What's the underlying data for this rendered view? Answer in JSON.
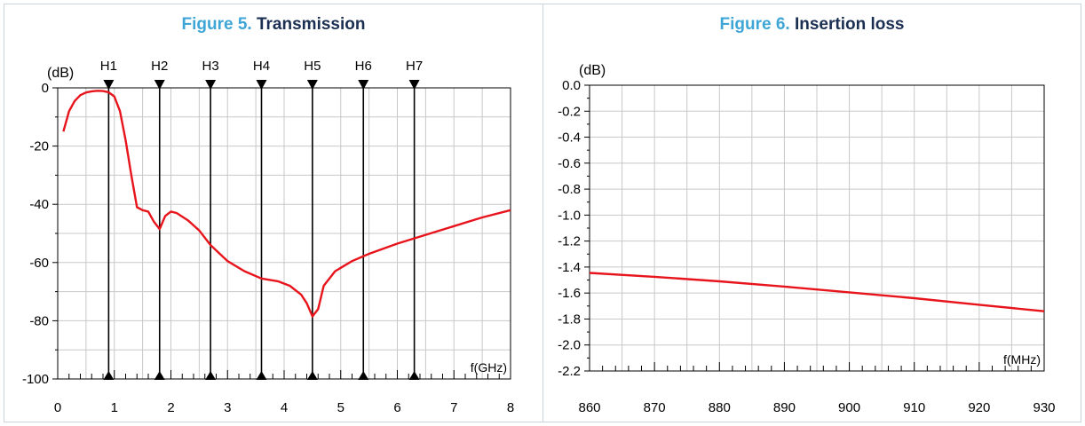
{
  "figure5": {
    "label": "Figure 5.",
    "title": "Transmission"
  },
  "figure6": {
    "label": "Figure 6.",
    "title": "Insertion loss"
  },
  "colors": {
    "curve": "#e8141c",
    "title_accent": "#3ea6d6",
    "title_main": "#1b2f52",
    "grid": "#c8c8c8",
    "panel_border": "#c9d3dc"
  },
  "chart_data": [
    {
      "type": "line",
      "title": "Transmission",
      "ylabel": "(dB)",
      "xlabel": "f(GHz)",
      "xlim": [
        0,
        8
      ],
      "ylim": [
        -100,
        0
      ],
      "x_ticks": [
        0,
        1,
        2,
        3,
        4,
        5,
        6,
        7,
        8
      ],
      "y_ticks": [
        0,
        -20,
        -40,
        -60,
        -80,
        -100
      ],
      "grid": true,
      "markers": [
        {
          "name": "H1",
          "x": 0.9
        },
        {
          "name": "H2",
          "x": 1.8
        },
        {
          "name": "H3",
          "x": 2.7
        },
        {
          "name": "H4",
          "x": 3.6
        },
        {
          "name": "H5",
          "x": 4.5
        },
        {
          "name": "H6",
          "x": 5.4
        },
        {
          "name": "H7",
          "x": 6.3
        }
      ],
      "series": [
        {
          "x": [
            0.1,
            0.2,
            0.3,
            0.4,
            0.5,
            0.6,
            0.7,
            0.8,
            0.9,
            1.0,
            1.1,
            1.2,
            1.3,
            1.4,
            1.5,
            1.6,
            1.7,
            1.8,
            1.9,
            2.0,
            2.1,
            2.3,
            2.5,
            2.7,
            3.0,
            3.3,
            3.6,
            3.9,
            4.1,
            4.3,
            4.4,
            4.5,
            4.6,
            4.7,
            4.9,
            5.2,
            5.5,
            6.0,
            6.5,
            7.0,
            7.5,
            8.0
          ],
          "y": [
            -15,
            -8,
            -4.5,
            -2.5,
            -1.6,
            -1.2,
            -1.0,
            -1.1,
            -1.5,
            -3,
            -8,
            -18,
            -30,
            -41,
            -42,
            -42.5,
            -46,
            -48.5,
            -44,
            -42.5,
            -43,
            -45.5,
            -49,
            -54,
            -59.5,
            -63,
            -65.5,
            -66.5,
            -68,
            -71,
            -74,
            -78.5,
            -76,
            -68,
            -63,
            -59.5,
            -57,
            -53.5,
            -50.5,
            -47.5,
            -44.5,
            -42
          ]
        }
      ]
    },
    {
      "type": "line",
      "title": "Insertion loss",
      "ylabel": "(dB)",
      "xlabel": "f(MHz)",
      "xlim": [
        860,
        930
      ],
      "ylim": [
        -2.2,
        0.0
      ],
      "x_ticks": [
        860,
        870,
        880,
        890,
        900,
        910,
        920,
        930
      ],
      "y_ticks": [
        "0.0",
        "-0.2",
        "-0.4",
        "-0.6",
        "-0.8",
        "-1.0",
        "-1.2",
        "-1.4",
        "-1.6",
        "-1.8",
        "-2.0",
        "-2.2"
      ],
      "grid": true,
      "series": [
        {
          "x": [
            860,
            870,
            880,
            890,
            900,
            910,
            920,
            930
          ],
          "y": [
            -1.445,
            -1.475,
            -1.51,
            -1.55,
            -1.595,
            -1.64,
            -1.69,
            -1.74
          ]
        }
      ]
    }
  ]
}
